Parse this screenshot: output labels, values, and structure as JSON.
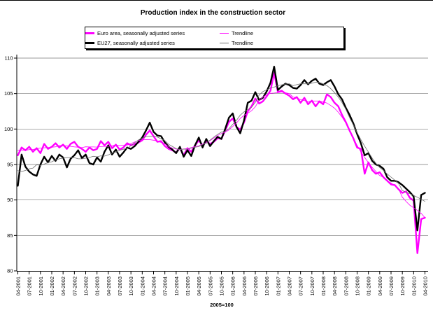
{
  "title": "Production index in the construction sector",
  "footnote": "2005=100",
  "legend": [
    {
      "label": "Euro area, seasonally adjusted series",
      "color": "#FF00FF",
      "weight": "thick"
    },
    {
      "label": "Trendline",
      "color": "#FF00FF",
      "weight": "thin"
    },
    {
      "label": "EU27, seasonally adjusted series",
      "color": "#000000",
      "weight": "thick"
    },
    {
      "label": "Trendline",
      "color": "#707070",
      "weight": "thin"
    }
  ],
  "chart_data": {
    "type": "line",
    "title": "Production index in the construction sector",
    "unit_note": "2005=100",
    "x_start": "04-2001",
    "x_end": "04-2010",
    "x_frequency": "monthly",
    "x_tick_labels": [
      "04-2001",
      "07-2001",
      "10-2001",
      "01-2002",
      "04-2002",
      "07-2002",
      "10-2002",
      "01-2003",
      "04-2003",
      "07-2003",
      "10-2003",
      "01-2004",
      "04-2004",
      "07-2004",
      "10-2004",
      "01-2005",
      "04-2005",
      "07-2005",
      "10-2005",
      "01-2006",
      "04-2006",
      "07-2006",
      "10-2006",
      "01-2007",
      "04-2007",
      "07-2007",
      "10-2007",
      "01-2008",
      "04-2008",
      "07-2008",
      "10-2008",
      "01-2009",
      "04-2009",
      "07-2009",
      "10-2009",
      "01-2010",
      "04-2010"
    ],
    "y_ticks": [
      80,
      85,
      90,
      95,
      100,
      105,
      110
    ],
    "ylim": [
      80,
      110
    ],
    "grid": "horizontal",
    "legend_position": "top",
    "series": [
      {
        "name": "Euro area, seasonally adjusted series",
        "color": "#FF00FF",
        "width": 2.4,
        "values": [
          96.3,
          97.4,
          97.0,
          97.5,
          96.8,
          97.3,
          96.6,
          97.9,
          97.2,
          97.5,
          98.0,
          97.4,
          97.8,
          97.2,
          97.9,
          98.2,
          97.5,
          97.2,
          96.8,
          97.4,
          97.0,
          97.2,
          98.3,
          97.7,
          98.2,
          97.3,
          97.8,
          97.1,
          97.4,
          98.0,
          97.7,
          97.9,
          98.1,
          98.4,
          99.2,
          99.8,
          99.0,
          98.2,
          98.3,
          97.6,
          97.2,
          97.0,
          96.7,
          97.3,
          96.3,
          97.3,
          96.8,
          97.7,
          98.4,
          97.7,
          98.3,
          97.9,
          98.2,
          98.7,
          98.6,
          99.8,
          101.0,
          101.5,
          100.3,
          99.9,
          100.9,
          102.5,
          103.2,
          104.3,
          103.6,
          103.9,
          104.6,
          105.4,
          107.9,
          105.2,
          105.4,
          105.0,
          104.7,
          104.2,
          104.5,
          103.7,
          104.4,
          103.5,
          104.0,
          103.2,
          103.9,
          103.5,
          104.9,
          104.5,
          103.7,
          103.2,
          102.0,
          101.0,
          99.8,
          98.7,
          97.4,
          97.2,
          93.7,
          95.3,
          94.2,
          93.7,
          93.9,
          93.2,
          92.7,
          92.2,
          92.1,
          91.5,
          91.0,
          91.2,
          90.3,
          89.9,
          82.5,
          87.3,
          87.5
        ]
      },
      {
        "name": "EU27, seasonally adjusted series",
        "color": "#000000",
        "width": 2.4,
        "values": [
          92.0,
          96.4,
          94.7,
          94.0,
          93.6,
          93.4,
          95.0,
          96.1,
          95.3,
          96.2,
          95.5,
          96.4,
          96.0,
          94.6,
          95.8,
          96.3,
          97.0,
          95.9,
          96.4,
          95.2,
          95.0,
          96.0,
          95.4,
          96.8,
          97.7,
          96.4,
          97.1,
          96.1,
          96.7,
          97.4,
          97.2,
          97.6,
          98.2,
          98.8,
          99.8,
          100.9,
          99.6,
          99.1,
          99.0,
          98.1,
          97.5,
          97.1,
          96.6,
          97.5,
          96.1,
          97.0,
          96.2,
          97.7,
          98.8,
          97.4,
          98.6,
          97.6,
          98.3,
          98.9,
          98.6,
          100.0,
          101.6,
          102.2,
          100.3,
          99.4,
          101.2,
          103.7,
          104.0,
          105.2,
          104.1,
          104.4,
          105.3,
          106.5,
          108.8,
          105.5,
          106.0,
          106.4,
          106.2,
          105.8,
          105.7,
          106.2,
          106.9,
          106.3,
          106.8,
          107.1,
          106.4,
          106.2,
          106.6,
          106.9,
          106.0,
          104.9,
          104.2,
          103.0,
          102.0,
          100.8,
          99.3,
          98.0,
          96.3,
          96.6,
          95.5,
          95.0,
          94.8,
          94.4,
          93.2,
          92.7,
          92.7,
          92.5,
          92.1,
          91.6,
          91.1,
          90.5,
          85.7,
          90.7,
          91.0
        ]
      },
      {
        "name": "Trendline (Euro area)",
        "color": "#FF00FF",
        "width": 0.8,
        "derived": "moving_average",
        "window": 9,
        "source": 0
      },
      {
        "name": "Trendline (EU27)",
        "color": "#707070",
        "width": 0.8,
        "derived": "moving_average",
        "window": 9,
        "source": 1
      }
    ]
  }
}
